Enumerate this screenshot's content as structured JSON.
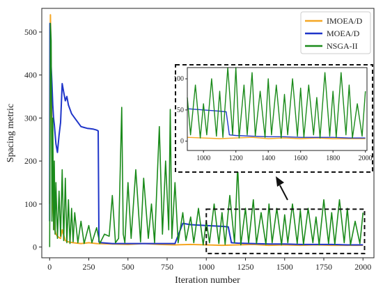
{
  "chart_data": {
    "type": "line",
    "title": "",
    "xlabel": "Iteration number",
    "ylabel": "Spacing metric",
    "xlim": [
      -50,
      2070
    ],
    "ylim": [
      -25,
      555
    ],
    "xticks": [
      0,
      250,
      500,
      750,
      1000,
      1250,
      1500,
      1750,
      2000
    ],
    "yticks": [
      0,
      100,
      200,
      300,
      400,
      500
    ],
    "grid": false,
    "legend_position": "top-right",
    "annotation": "dashed zoom box over iterations 1000-2000 with arrow pointing to inset",
    "series": [
      {
        "name": "IMOEA/D",
        "color": "#f5a623",
        "x": [
          0,
          5,
          10,
          15,
          20,
          25,
          30,
          40,
          50,
          60,
          70,
          80,
          100,
          120,
          150,
          200,
          250,
          300,
          400,
          500,
          600,
          700,
          800,
          900,
          1000,
          1100,
          1200,
          1300,
          1400,
          1500,
          1600,
          1700,
          1800,
          1900,
          2000
        ],
        "y": [
          100,
          540,
          410,
          250,
          120,
          70,
          45,
          30,
          25,
          22,
          20,
          40,
          15,
          12,
          10,
          8,
          10,
          8,
          7,
          6,
          8,
          6,
          5,
          6,
          5,
          4,
          5,
          6,
          4,
          5,
          4,
          5,
          4,
          4,
          4
        ]
      },
      {
        "name": "MOEA/D",
        "color": "#1f35c9",
        "x": [
          0,
          2,
          5,
          10,
          15,
          20,
          25,
          30,
          40,
          50,
          60,
          70,
          80,
          90,
          100,
          110,
          120,
          140,
          160,
          180,
          200,
          220,
          240,
          260,
          280,
          300,
          310,
          315,
          330,
          400,
          500,
          600,
          700,
          800,
          850,
          900,
          1000,
          1100,
          1140,
          1160,
          1200,
          1300,
          1400,
          1500,
          1600,
          1700,
          1800,
          1900,
          2000
        ],
        "y": [
          60,
          520,
          470,
          420,
          380,
          330,
          300,
          285,
          240,
          220,
          260,
          290,
          380,
          360,
          340,
          350,
          330,
          310,
          300,
          290,
          280,
          278,
          276,
          275,
          274,
          272,
          270,
          12,
          10,
          8,
          8,
          8,
          8,
          8,
          55,
          52,
          50,
          48,
          47,
          10,
          9,
          8,
          7,
          7,
          6,
          6,
          6,
          5,
          5
        ]
      },
      {
        "name": "NSGA-II",
        "color": "#1a8a1a",
        "x": [
          0,
          5,
          10,
          15,
          20,
          25,
          30,
          35,
          40,
          50,
          60,
          70,
          80,
          90,
          100,
          110,
          120,
          130,
          140,
          150,
          160,
          180,
          200,
          220,
          250,
          270,
          300,
          320,
          350,
          380,
          400,
          420,
          440,
          460,
          470,
          480,
          500,
          520,
          550,
          580,
          600,
          630,
          650,
          670,
          700,
          720,
          740,
          760,
          770,
          780,
          800,
          820,
          850,
          870,
          900,
          920,
          950,
          980,
          1000,
          1020,
          1050,
          1080,
          1100,
          1120,
          1150,
          1180,
          1200,
          1220,
          1250,
          1270,
          1300,
          1320,
          1350,
          1380,
          1400,
          1420,
          1450,
          1480,
          1500,
          1520,
          1550,
          1580,
          1600,
          1620,
          1650,
          1680,
          1700,
          1720,
          1750,
          1780,
          1800,
          1820,
          1850,
          1880,
          1900,
          1920,
          1950,
          1980,
          2000
        ],
        "y": [
          0,
          520,
          480,
          60,
          300,
          40,
          200,
          30,
          150,
          20,
          130,
          25,
          180,
          15,
          160,
          10,
          110,
          8,
          90,
          12,
          80,
          10,
          60,
          8,
          50,
          10,
          45,
          8,
          30,
          25,
          120,
          10,
          20,
          325,
          30,
          10,
          150,
          20,
          180,
          12,
          160,
          20,
          100,
          10,
          280,
          30,
          200,
          40,
          320,
          20,
          150,
          10,
          80,
          15,
          70,
          10,
          90,
          5,
          60,
          10,
          100,
          8,
          80,
          6,
          120,
          10,
          190,
          5,
          90,
          10,
          110,
          8,
          80,
          6,
          100,
          10,
          90,
          5,
          75,
          10,
          100,
          8,
          85,
          6,
          90,
          10,
          70,
          5,
          110,
          8,
          80,
          6,
          110,
          10,
          90,
          5,
          60,
          8,
          80
        ]
      }
    ],
    "inset": {
      "xlim": [
        900,
        2010
      ],
      "ylim": [
        -15,
        118
      ],
      "xticks": [
        1000,
        1200,
        1400,
        1600,
        1800,
        2000
      ],
      "yticks": [
        0,
        50,
        100
      ]
    }
  }
}
